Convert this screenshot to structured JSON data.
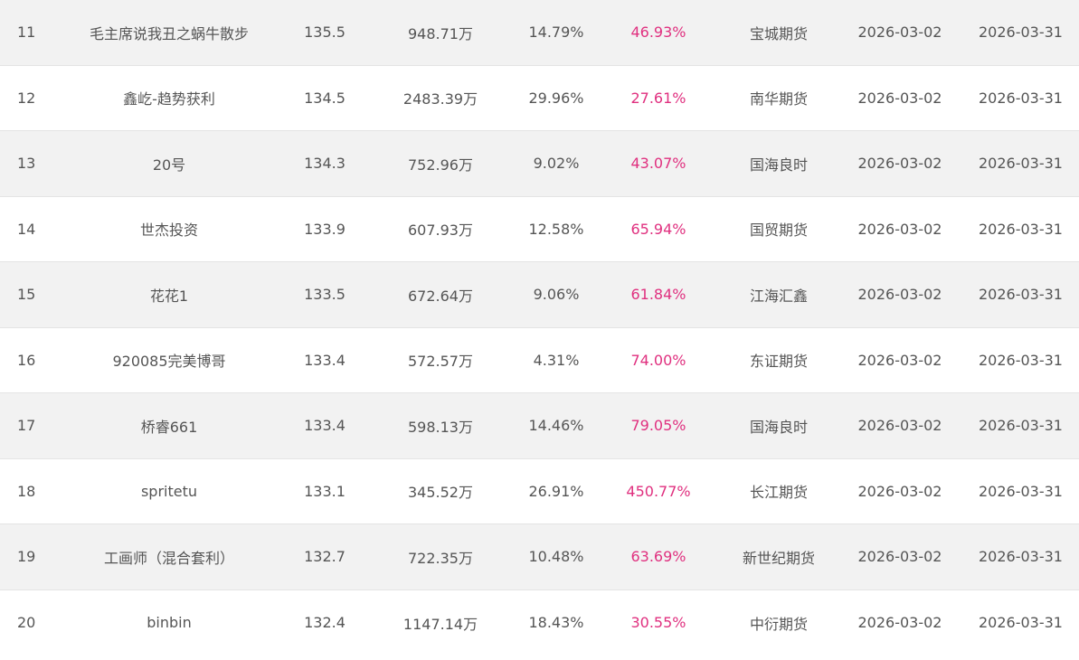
{
  "accent_color": "#e0307f",
  "rows": [
    {
      "rank": "11",
      "name": "毛主席说我丑之蜗牛散步",
      "score": "135.5",
      "equity": "948.71万",
      "drawdown": "14.79%",
      "return": "46.93%",
      "broker": "宝城期货",
      "start": "2026-03-02",
      "end": "2026-03-31"
    },
    {
      "rank": "12",
      "name": "鑫屹-趋势获利",
      "score": "134.5",
      "equity": "2483.39万",
      "drawdown": "29.96%",
      "return": "27.61%",
      "broker": "南华期货",
      "start": "2026-03-02",
      "end": "2026-03-31"
    },
    {
      "rank": "13",
      "name": "20号",
      "score": "134.3",
      "equity": "752.96万",
      "drawdown": "9.02%",
      "return": "43.07%",
      "broker": "国海良时",
      "start": "2026-03-02",
      "end": "2026-03-31"
    },
    {
      "rank": "14",
      "name": "世杰投资",
      "score": "133.9",
      "equity": "607.93万",
      "drawdown": "12.58%",
      "return": "65.94%",
      "broker": "国贸期货",
      "start": "2026-03-02",
      "end": "2026-03-31"
    },
    {
      "rank": "15",
      "name": "花花1",
      "score": "133.5",
      "equity": "672.64万",
      "drawdown": "9.06%",
      "return": "61.84%",
      "broker": "江海汇鑫",
      "start": "2026-03-02",
      "end": "2026-03-31"
    },
    {
      "rank": "16",
      "name": "920085完美博哥",
      "score": "133.4",
      "equity": "572.57万",
      "drawdown": "4.31%",
      "return": "74.00%",
      "broker": "东证期货",
      "start": "2026-03-02",
      "end": "2026-03-31"
    },
    {
      "rank": "17",
      "name": "桥睿661",
      "score": "133.4",
      "equity": "598.13万",
      "drawdown": "14.46%",
      "return": "79.05%",
      "broker": "国海良时",
      "start": "2026-03-02",
      "end": "2026-03-31"
    },
    {
      "rank": "18",
      "name": "spritetu",
      "score": "133.1",
      "equity": "345.52万",
      "drawdown": "26.91%",
      "return": "450.77%",
      "broker": "长江期货",
      "start": "2026-03-02",
      "end": "2026-03-31"
    },
    {
      "rank": "19",
      "name": "工画师（混合套利）",
      "score": "132.7",
      "equity": "722.35万",
      "drawdown": "10.48%",
      "return": "63.69%",
      "broker": "新世纪期货",
      "start": "2026-03-02",
      "end": "2026-03-31"
    },
    {
      "rank": "20",
      "name": "binbin",
      "score": "132.4",
      "equity": "1147.14万",
      "drawdown": "18.43%",
      "return": "30.55%",
      "broker": "中衍期货",
      "start": "2026-03-02",
      "end": "2026-03-31"
    }
  ]
}
